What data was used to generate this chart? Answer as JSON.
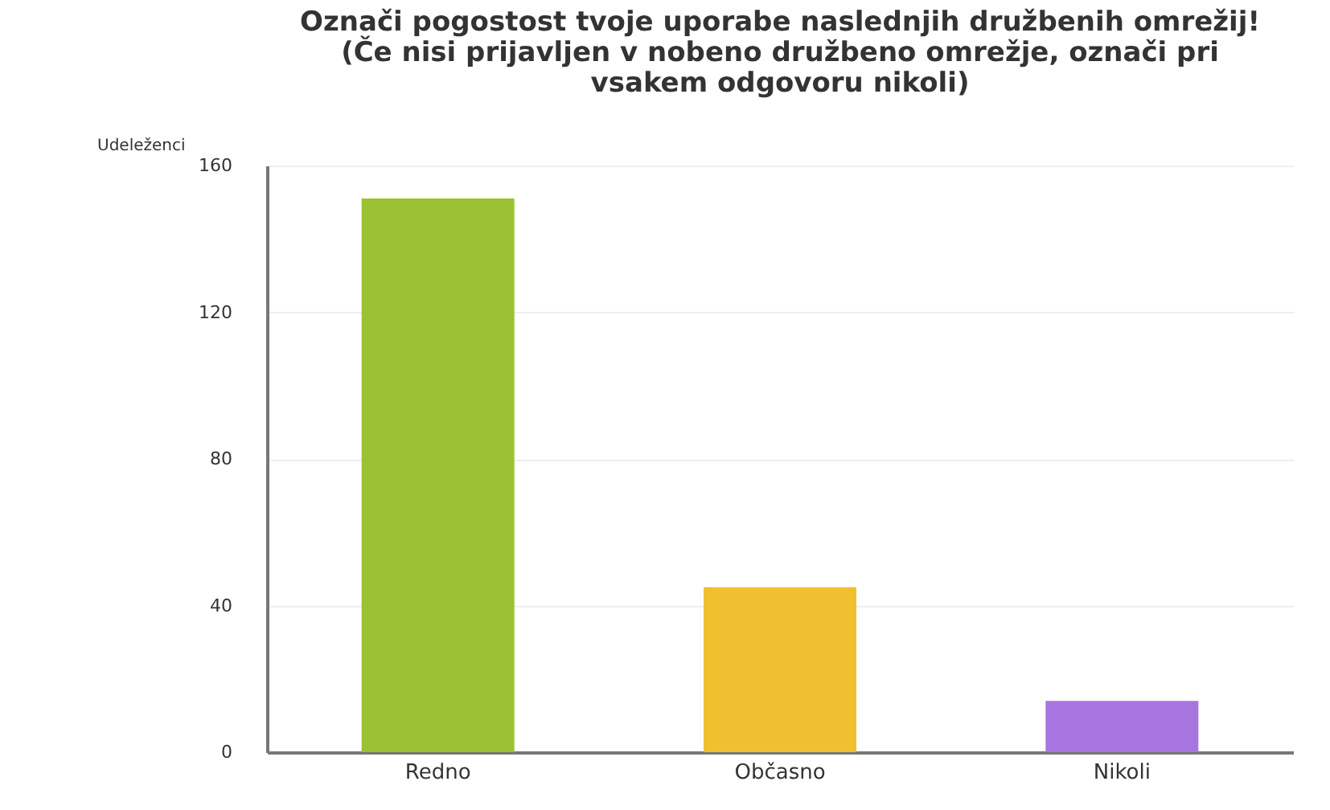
{
  "chart_data": {
    "type": "bar",
    "title": "Označi pogostost tvoje uporabe naslednjih družbenih omrežij! (Če nisi prijavljen v nobeno družbeno omrežje, označi pri vsakem odgovoru nikoli)",
    "ylabel": "Udeleženci",
    "categories": [
      "Redno",
      "Občasno",
      "Nikoli"
    ],
    "values": [
      151,
      45,
      14
    ],
    "colors": [
      "#9bc232",
      "#f0c030",
      "#a875e0"
    ],
    "ylim": [
      0,
      160
    ],
    "yticks": [
      0,
      40,
      80,
      120,
      160
    ],
    "grid": "y"
  }
}
